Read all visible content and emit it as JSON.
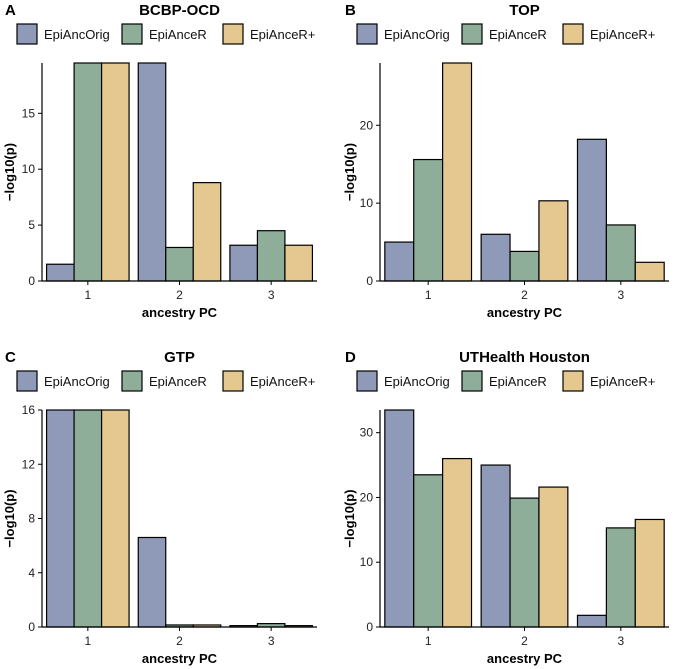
{
  "colors": {
    "EpiAncOrig": "#8e9ab8",
    "EpiAnceR": "#8fae99",
    "EpiAnceR+": "#e5c88f"
  },
  "chart_data": [
    {
      "panel": "A",
      "type": "bar",
      "title": "BCBP-OCD",
      "xlabel": "ancestry PC",
      "ylabel": "−log10(p)",
      "categories": [
        "1",
        "2",
        "3"
      ],
      "yticks": [
        0,
        5,
        10,
        15
      ],
      "ylim": [
        0,
        19.5
      ],
      "legend_position": "top",
      "series": [
        {
          "name": "EpiAncOrig",
          "values": [
            1.5,
            19.5,
            3.2
          ]
        },
        {
          "name": "EpiAnceR",
          "values": [
            19.5,
            3.0,
            4.5
          ]
        },
        {
          "name": "EpiAnceR+",
          "values": [
            19.5,
            8.8,
            3.2
          ]
        }
      ]
    },
    {
      "panel": "B",
      "type": "bar",
      "title": "TOP",
      "xlabel": "ancestry PC",
      "ylabel": "−log10(p)",
      "categories": [
        "1",
        "2",
        "3"
      ],
      "yticks": [
        0,
        10,
        20
      ],
      "ylim": [
        0,
        28
      ],
      "legend_position": "top",
      "series": [
        {
          "name": "EpiAncOrig",
          "values": [
            5.0,
            6.0,
            18.2
          ]
        },
        {
          "name": "EpiAnceR",
          "values": [
            15.6,
            3.8,
            7.2
          ]
        },
        {
          "name": "EpiAnceR+",
          "values": [
            28.0,
            10.3,
            2.4
          ]
        }
      ]
    },
    {
      "panel": "C",
      "type": "bar",
      "title": "GTP",
      "xlabel": "ancestry PC",
      "ylabel": "−log10(p)",
      "categories": [
        "1",
        "2",
        "3"
      ],
      "yticks": [
        0,
        4,
        8,
        12,
        16
      ],
      "ylim": [
        0,
        16
      ],
      "legend_position": "top",
      "series": [
        {
          "name": "EpiAncOrig",
          "values": [
            16.0,
            6.6,
            0.1
          ]
        },
        {
          "name": "EpiAnceR",
          "values": [
            16.0,
            0.15,
            0.25
          ]
        },
        {
          "name": "EpiAnceR+",
          "values": [
            16.0,
            0.15,
            0.1
          ]
        }
      ]
    },
    {
      "panel": "D",
      "type": "bar",
      "title": "UTHealth Houston",
      "xlabel": "ancestry PC",
      "ylabel": "−log10(p)",
      "categories": [
        "1",
        "2",
        "3"
      ],
      "yticks": [
        0,
        10,
        20,
        30
      ],
      "ylim": [
        0,
        33.5
      ],
      "legend_position": "top",
      "series": [
        {
          "name": "EpiAncOrig",
          "values": [
            33.5,
            25.0,
            1.8
          ]
        },
        {
          "name": "EpiAnceR",
          "values": [
            23.5,
            19.9,
            15.3
          ]
        },
        {
          "name": "EpiAnceR+",
          "values": [
            26.0,
            21.6,
            16.6
          ]
        }
      ]
    }
  ]
}
